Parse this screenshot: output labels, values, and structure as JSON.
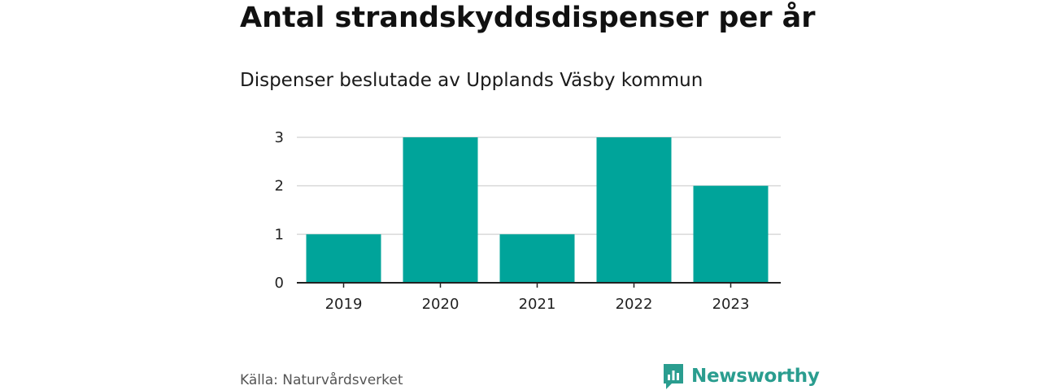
{
  "chart_data": {
    "type": "bar",
    "title": "Antal strandskyddsdispenser per år",
    "subtitle": "Dispenser beslutade av Upplands Väsby kommun",
    "categories": [
      "2019",
      "2020",
      "2021",
      "2022",
      "2023"
    ],
    "values": [
      1,
      3,
      1,
      3,
      2
    ],
    "ylim": [
      0,
      3
    ],
    "yticks": [
      "0",
      "1",
      "2",
      "3"
    ],
    "xlabel": "",
    "ylabel": "",
    "grid": true,
    "bar_color": "#00a49a",
    "grid_color": "#d9d9d9",
    "axis_color": "#222222"
  },
  "footer": {
    "source": "Källa: Naturvårdsverket",
    "brand": "Newsworthy",
    "brand_icon": "bar-chart-speech-bubble-icon",
    "brand_color": "#2a9d8f"
  }
}
